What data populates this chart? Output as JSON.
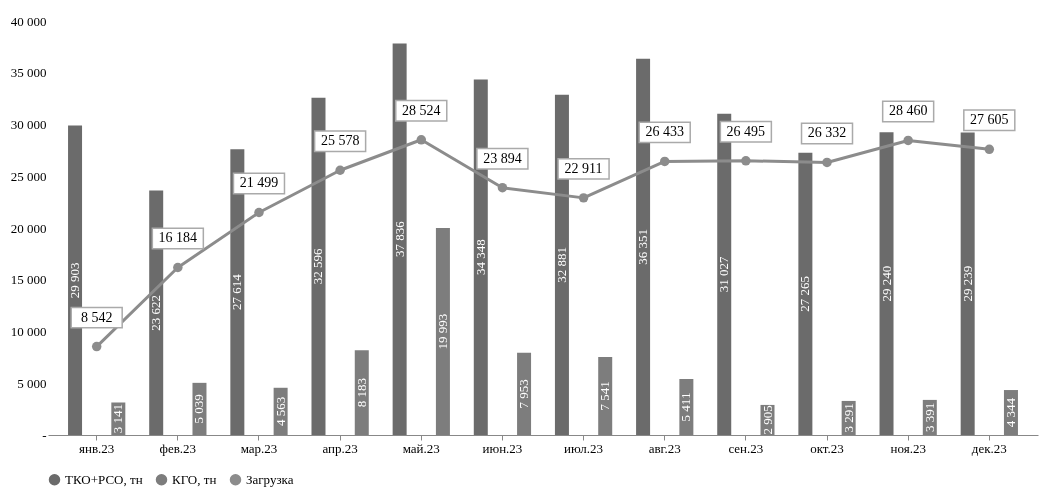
{
  "chart_data": {
    "type": "bar",
    "categories": [
      "янв.23",
      "фев.23",
      "мар.23",
      "апр.23",
      "май.23",
      "июн.23",
      "июл.23",
      "авг.23",
      "сен.23",
      "окт.23",
      "ноя.23",
      "дек.23"
    ],
    "series": [
      {
        "name": "ТКО+РСО, тн",
        "color": "#6b6b6b",
        "values": [
          29903,
          23622,
          27614,
          32596,
          37836,
          34348,
          32881,
          36351,
          31027,
          27265,
          29240,
          29239
        ],
        "value_labels": [
          "29 903",
          "23 622",
          "27 614",
          "32 596",
          "37 836",
          "34 348",
          "32 881",
          "36 351",
          "31 027",
          "27 265",
          "29 240",
          "29 239"
        ]
      },
      {
        "name": "КГО, тн",
        "color": "#7d7d7d",
        "values": [
          3141,
          5039,
          4563,
          8183,
          19993,
          7953,
          7541,
          5411,
          2905,
          3291,
          3391,
          4344
        ],
        "value_labels": [
          "3 141",
          "5 039",
          "4 563",
          "8 183",
          "19 993",
          "7 953",
          "7 541",
          "5 411",
          "2 905",
          "3 291",
          "3 391",
          "4 344"
        ]
      },
      {
        "name": "Загрузка",
        "type": "line",
        "color": "#8c8c8c",
        "marker": "circle",
        "line_style": "solid",
        "values": [
          8542,
          16184,
          21499,
          25578,
          28524,
          23894,
          22911,
          26433,
          26495,
          26332,
          28460,
          27605
        ],
        "value_labels": [
          "8 542",
          "16 184",
          "21 499",
          "25 578",
          "28 524",
          "23 894",
          "22 911",
          "26 433",
          "26 495",
          "26 332",
          "28 460",
          "27 605"
        ]
      }
    ],
    "ylim": [
      0,
      40000
    ],
    "yticks": [
      {
        "value": 0,
        "label": "-"
      },
      {
        "value": 5000,
        "label": "5 000"
      },
      {
        "value": 10000,
        "label": "10 000"
      },
      {
        "value": 15000,
        "label": "15 000"
      },
      {
        "value": 20000,
        "label": "20 000"
      },
      {
        "value": 25000,
        "label": "25 000"
      },
      {
        "value": 30000,
        "label": "30 000"
      },
      {
        "value": 35000,
        "label": "35 000"
      },
      {
        "value": 40000,
        "label": "40 000"
      }
    ],
    "grid": false,
    "legend": "bottom"
  }
}
